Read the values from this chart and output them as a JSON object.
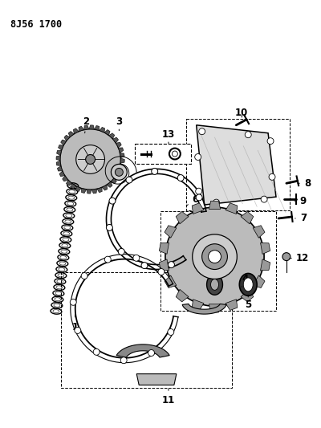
{
  "title": "8J56 1700",
  "bg_color": "#ffffff",
  "fg_color": "#000000",
  "fig_width": 4.0,
  "fig_height": 5.33,
  "dpi": 100
}
